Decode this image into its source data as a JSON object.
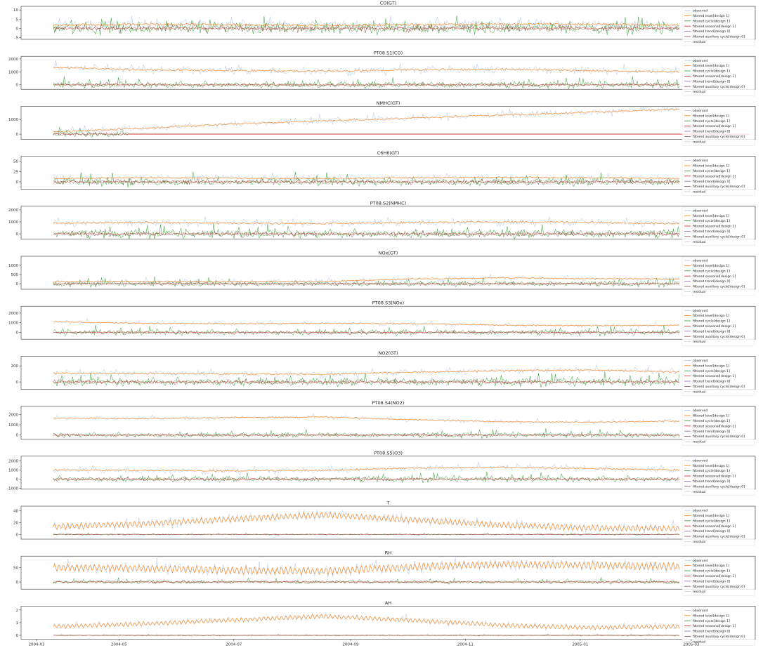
{
  "figure": {
    "x_tick_labels": [
      "2004-03",
      "2004-05",
      "2004-07",
      "2004-09",
      "2004-11",
      "2005-01",
      "2005-03"
    ]
  },
  "legend_labels": [
    "observed",
    "filtered level[design 1]",
    "filtered cycle[design 1]",
    "filtered seasonal[design 1]",
    "filtered trend[design 0]",
    "filtered auxiliary cycle[design 0]",
    "residual"
  ],
  "colors": {
    "observed": "#aec7e8",
    "level": "#ff7f0e",
    "cycle": "#2ca02c",
    "seasonal": "#d62728",
    "trend": "#9467bd",
    "auxiliary": "#8c564b",
    "residual": "#cccccc"
  },
  "chart_data": [
    {
      "type": "line",
      "title": "CO(GT)",
      "x_range": [
        "2004-03-10",
        "2005-04-04"
      ],
      "yticks": [
        -5,
        0,
        5,
        10
      ],
      "ylim": [
        -6,
        12
      ],
      "level": [
        1.8,
        2.2,
        2.0,
        1.6,
        1.9,
        2.4,
        2.3,
        1.8
      ],
      "observed_spread": 3,
      "comp_spread": 3.5
    },
    {
      "type": "line",
      "title": "PT08.S1(CO)",
      "x_range": [
        "2004-03-10",
        "2005-04-04"
      ],
      "yticks": [
        0,
        1000,
        2000
      ],
      "ylim": [
        -350,
        2200
      ],
      "level": [
        1350,
        1150,
        1100,
        1050,
        1150,
        1200,
        1100,
        1000
      ],
      "observed_spread": 350,
      "comp_spread": 300
    },
    {
      "type": "line",
      "title": "NMHC(GT)",
      "x_range": [
        "2004-03-10",
        "2005-04-04"
      ],
      "yticks": [
        0,
        1000
      ],
      "ylim": [
        -350,
        1900
      ],
      "level": [
        150,
        400,
        700,
        900,
        1100,
        1300,
        1500,
        1700
      ],
      "observed_spread": 300,
      "comp_spread": 250,
      "nmhc": true
    },
    {
      "type": "line",
      "title": "C6H6(GT)",
      "x_range": [
        "2004-03-10",
        "2005-04-04"
      ],
      "yticks": [
        0,
        25,
        50
      ],
      "ylim": [
        -18,
        62
      ],
      "level": [
        8,
        10,
        9,
        8,
        10,
        11,
        10,
        8
      ],
      "observed_spread": 8,
      "comp_spread": 12
    },
    {
      "type": "line",
      "title": "PT08.S2(NMHC)",
      "x_range": [
        "2004-03-10",
        "2005-04-04"
      ],
      "yticks": [
        0,
        1000,
        2000
      ],
      "ylim": [
        -450,
        2300
      ],
      "level": [
        900,
        950,
        900,
        850,
        950,
        1000,
        950,
        850
      ],
      "observed_spread": 350,
      "comp_spread": 420
    },
    {
      "type": "line",
      "title": "NOx(GT)",
      "x_range": [
        "2004-03-10",
        "2005-04-04"
      ],
      "yticks": [
        0,
        500,
        1000
      ],
      "ylim": [
        -300,
        1500
      ],
      "level": [
        100,
        120,
        110,
        120,
        260,
        320,
        280,
        260
      ],
      "observed_spread": 150,
      "comp_spread": 180
    },
    {
      "type": "line",
      "title": "PT08.S3(NOx)",
      "x_range": [
        "2004-03-10",
        "2005-04-04"
      ],
      "yticks": [
        0,
        1000,
        2000
      ],
      "ylim": [
        -700,
        2700
      ],
      "level": [
        1100,
        950,
        900,
        950,
        900,
        750,
        700,
        750
      ],
      "observed_spread": 250,
      "comp_spread": 350
    },
    {
      "type": "line",
      "title": "NO2(GT)",
      "x_range": [
        "2004-03-10",
        "2005-04-04"
      ],
      "yticks": [
        0,
        200
      ],
      "ylim": [
        -90,
        320
      ],
      "level": [
        110,
        105,
        100,
        95,
        120,
        140,
        150,
        125
      ],
      "observed_spread": 45,
      "comp_spread": 60
    },
    {
      "type": "line",
      "title": "PT08.S4(NO2)",
      "x_range": [
        "2004-03-10",
        "2005-04-04"
      ],
      "yticks": [
        0,
        1000,
        2000
      ],
      "ylim": [
        -400,
        2800
      ],
      "level": [
        1650,
        1600,
        1700,
        1750,
        1500,
        1300,
        1250,
        1350
      ],
      "observed_spread": 250,
      "comp_spread": 300
    },
    {
      "type": "line",
      "title": "PT08.S5(O3)",
      "x_range": [
        "2004-03-10",
        "2005-04-04"
      ],
      "yticks": [
        -1000,
        0,
        1000,
        2000
      ],
      "ylim": [
        -1100,
        2500
      ],
      "level": [
        1000,
        950,
        900,
        950,
        1200,
        1300,
        1150,
        1000
      ],
      "observed_spread": 400,
      "comp_spread": 380
    },
    {
      "type": "line",
      "title": "T",
      "x_range": [
        "2004-03-10",
        "2005-04-04"
      ],
      "yticks": [
        0,
        20,
        40
      ],
      "ylim": [
        -8,
        48
      ],
      "level": [
        13,
        18,
        26,
        33,
        25,
        16,
        11,
        10
      ],
      "observed_spread": 6,
      "comp_spread": 1.5,
      "level_amp": 6
    },
    {
      "type": "line",
      "title": "RH",
      "x_range": [
        "2004-03-10",
        "2005-04-04"
      ],
      "yticks": [
        0,
        50
      ],
      "ylim": [
        -25,
        90
      ],
      "level": [
        50,
        48,
        40,
        38,
        52,
        62,
        58,
        55
      ],
      "observed_spread": 15,
      "comp_spread": 8,
      "level_amp": 15
    },
    {
      "type": "line",
      "title": "AH",
      "x_range": [
        "2004-03-10",
        "2005-04-04"
      ],
      "yticks": [
        0,
        1,
        2
      ],
      "ylim": [
        -0.3,
        2.3
      ],
      "level": [
        0.7,
        0.9,
        1.2,
        1.5,
        1.2,
        0.8,
        0.6,
        0.7
      ],
      "observed_spread": 0.15,
      "comp_spread": 0.05,
      "level_amp": 0.2
    }
  ]
}
